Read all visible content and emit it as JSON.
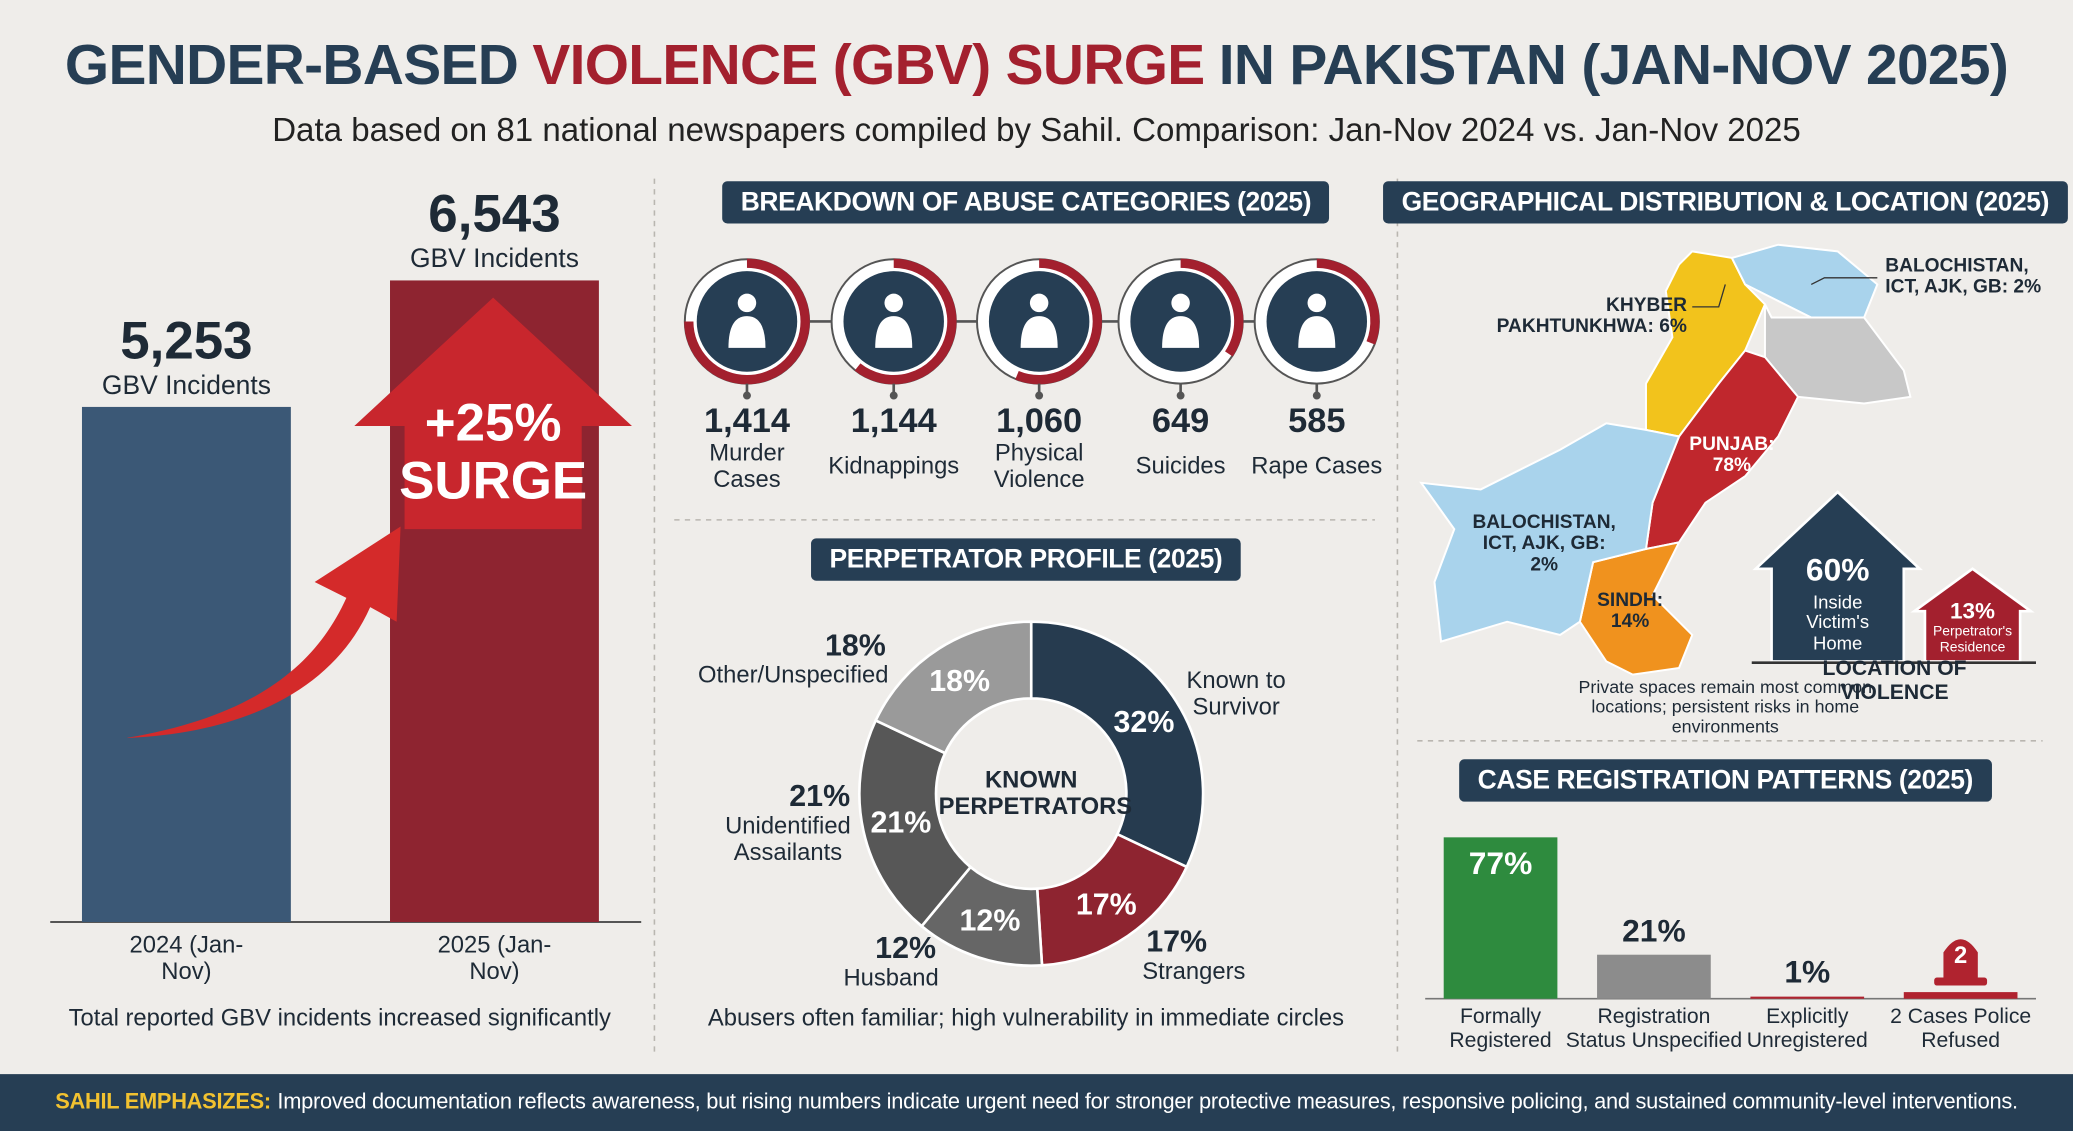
{
  "header": {
    "title": [
      {
        "text": "GENDER-BASED",
        "color": "#263e54"
      },
      {
        "text": "VIOLENCE (GBV) SURGE",
        "color": "#a3202e"
      },
      {
        "text": "IN PAKISTAN (JAN-NOV 2025)",
        "color": "#263e54"
      }
    ],
    "subtitle": "Data based on 81 national newspapers compiled by Sahil. Comparison: Jan-Nov 2024 vs. Jan-Nov 2025"
  },
  "chart_data": [
    {
      "type": "bar",
      "categories": [
        "2024 (Jan-Nov)",
        "2025 (Jan-Nov)"
      ],
      "values": [
        5253,
        6543
      ],
      "value_labels": [
        "5,253",
        "6,543"
      ],
      "unit_label": "GBV Incidents",
      "colors": [
        "#3b5876",
        "#8e2430"
      ],
      "annotation": "+25% SURGE",
      "note": "Total reported GBV incidents increased significantly"
    },
    {
      "type": "rings",
      "title": "BREAKDOWN OF ABUSE CATEGORIES (2025)",
      "categories": [
        "Murder Cases",
        "Kidnappings",
        "Physical Violence",
        "Suicides",
        "Rape Cases"
      ],
      "values": [
        1414,
        1144,
        1060,
        649,
        585
      ],
      "value_labels": [
        "1,414",
        "1,144",
        "1,060",
        "649",
        "585"
      ],
      "color": "#a3202e"
    },
    {
      "type": "donut",
      "title": "PERPETRATOR PROFILE (2025)",
      "categories": [
        "Known to Survivor",
        "Strangers",
        "Husband",
        "Unidentified Assailants",
        "Other/Unspecified"
      ],
      "values": [
        32,
        17,
        12,
        21,
        18
      ],
      "value_labels": [
        "32%",
        "17%",
        "12%",
        "21%",
        "18%"
      ],
      "colors": [
        "#263b4f",
        "#8e2430",
        "#666666",
        "#575757",
        "#9a9a9a"
      ],
      "center_label": "KNOWN PERPETRATORS",
      "note": "Abusers often familiar; high vulnerability in immediate circles"
    },
    {
      "type": "map",
      "title": "GEOGRAPHICAL DISTRIBUTION & LOCATION (2025)",
      "values": [
        6,
        78,
        14,
        2
      ],
      "value_labels": [
        "KHYBER PAKHTUNKHWA: 6%",
        "PUNJAB: 78%",
        "SINDH: 14%",
        "BALOCHISTAN, ICT, AJK, GB: 2%"
      ],
      "colors": [
        "#f2c31c",
        "#c0272d",
        "#f0921e",
        "#a9d3ec"
      ]
    },
    {
      "type": "houses",
      "title": "LOCATION OF VIOLENCE",
      "categories": [
        "Inside Victim's Home",
        "Perpetrator's Residence"
      ],
      "values": [
        60,
        13
      ],
      "value_labels": [
        "60%",
        "13%"
      ],
      "colors": [
        "#263e54",
        "#a3202e"
      ],
      "note": "Private spaces remain most common locations; persistent risks in home environments"
    },
    {
      "type": "bar",
      "title": "CASE REGISTRATION PATTERNS (2025)",
      "categories": [
        "Formally Registered",
        "Registration Status Unspecified",
        "Explicitly Unregistered",
        "2 Cases Police Refused"
      ],
      "values": [
        77,
        21,
        1,
        null
      ],
      "value_labels": [
        "77%",
        "21%",
        "1%",
        null
      ],
      "colors": [
        "#2e8b3e",
        "#8c8c8c",
        "#b0232f",
        "#b0232f"
      ],
      "police_refused_cases": 2
    }
  ],
  "footer": {
    "label": "SAHIL EMPHASIZES:",
    "text": "Improved documentation reflects awareness, but rising numbers indicate urgent need for stronger protective measures, responsive policing, and sustained community-level interventions."
  }
}
